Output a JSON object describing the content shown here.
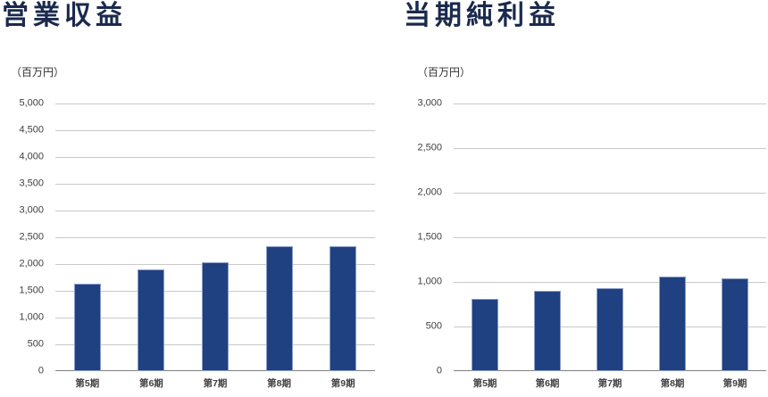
{
  "page": {
    "background_color": "#ffffff"
  },
  "chart_data": [
    {
      "type": "bar",
      "title": "営業収益",
      "unit_label": "（百万円）",
      "categories": [
        "第5期",
        "第6期",
        "第7期",
        "第8期",
        "第9期"
      ],
      "values": [
        1640,
        1900,
        2030,
        2330,
        2330
      ],
      "ylim": [
        0,
        5000
      ],
      "ytick_step": 500,
      "ytick_labels": [
        "0",
        "500",
        "1,000",
        "1,500",
        "2,000",
        "2,500",
        "3,000",
        "3,500",
        "4,000",
        "4,500",
        "5,000"
      ],
      "grid": true,
      "legend": false,
      "bar_color": "#1f4182",
      "bar_border_color": "#8d9dc4",
      "gridline_color": "#c9c9c9",
      "axis_line_color": "#7f7f7f",
      "title_color": "#1a2a4e",
      "label_color": "#404040",
      "unit_color": "#333333"
    },
    {
      "type": "bar",
      "title": "当期純利益",
      "unit_label": "（百万円）",
      "categories": [
        "第5期",
        "第6期",
        "第7期",
        "第8期",
        "第9期"
      ],
      "values": [
        810,
        905,
        930,
        1060,
        1040
      ],
      "ylim": [
        0,
        3000
      ],
      "ytick_step": 500,
      "ytick_labels": [
        "0",
        "500",
        "1,000",
        "1,500",
        "2,000",
        "2,500",
        "3,000"
      ],
      "grid": true,
      "legend": false,
      "bar_color": "#1f4182",
      "bar_border_color": "#8d9dc4",
      "gridline_color": "#c9c9c9",
      "axis_line_color": "#7f7f7f",
      "title_color": "#1a2a4e",
      "label_color": "#404040",
      "unit_color": "#333333"
    }
  ]
}
